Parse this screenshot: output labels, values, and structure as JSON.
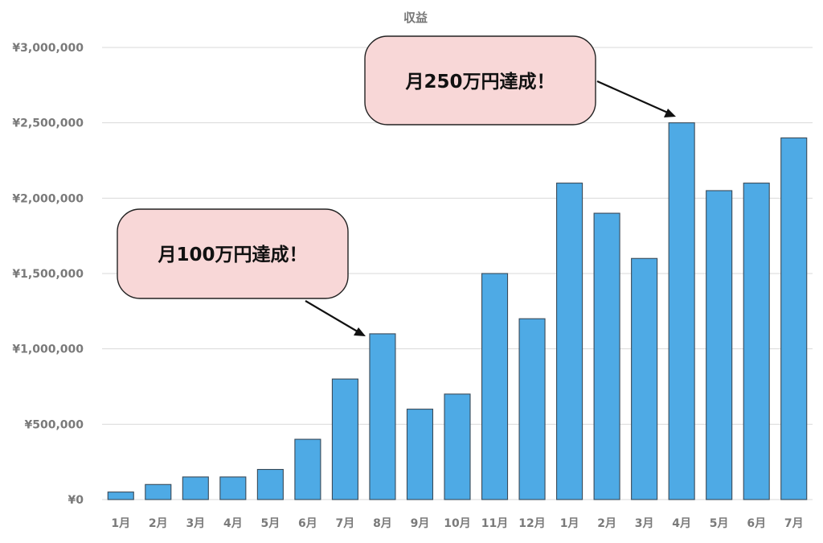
{
  "chart_data": {
    "type": "bar",
    "title": "収益",
    "categories": [
      "1月",
      "2月",
      "3月",
      "4月",
      "5月",
      "6月",
      "7月",
      "8月",
      "9月",
      "10月",
      "11月",
      "12月",
      "1月",
      "2月",
      "3月",
      "4月",
      "5月",
      "6月",
      "7月"
    ],
    "series": [
      {
        "values": [
          50000,
          100000,
          150000,
          150000,
          200000,
          400000,
          800000,
          1100000,
          600000,
          700000,
          1500000,
          1200000,
          2100000,
          1900000,
          1600000,
          2500000,
          2050000,
          2100000,
          2400000
        ],
        "color": "#4eaae5"
      }
    ],
    "ylim": [
      0,
      3000000
    ],
    "yticks": [
      {
        "value": 0,
        "label": "¥0"
      },
      {
        "value": 500000,
        "label": "¥500,000"
      },
      {
        "value": 1000000,
        "label": "¥1,000,000"
      },
      {
        "value": 1500000,
        "label": "¥1,500,000"
      },
      {
        "value": 2000000,
        "label": "¥2,000,000"
      },
      {
        "value": 2500000,
        "label": "¥2,500,000"
      },
      {
        "value": 3000000,
        "label": "¥3,000,000"
      }
    ],
    "grid": true,
    "annotations": [
      {
        "text": "月100万円達成！",
        "target_index": 7
      },
      {
        "text": "月250万円達成！",
        "target_index": 15
      }
    ],
    "colors": {
      "bar": "#4eaae5",
      "callout_fill": "#f8d7d7"
    }
  }
}
